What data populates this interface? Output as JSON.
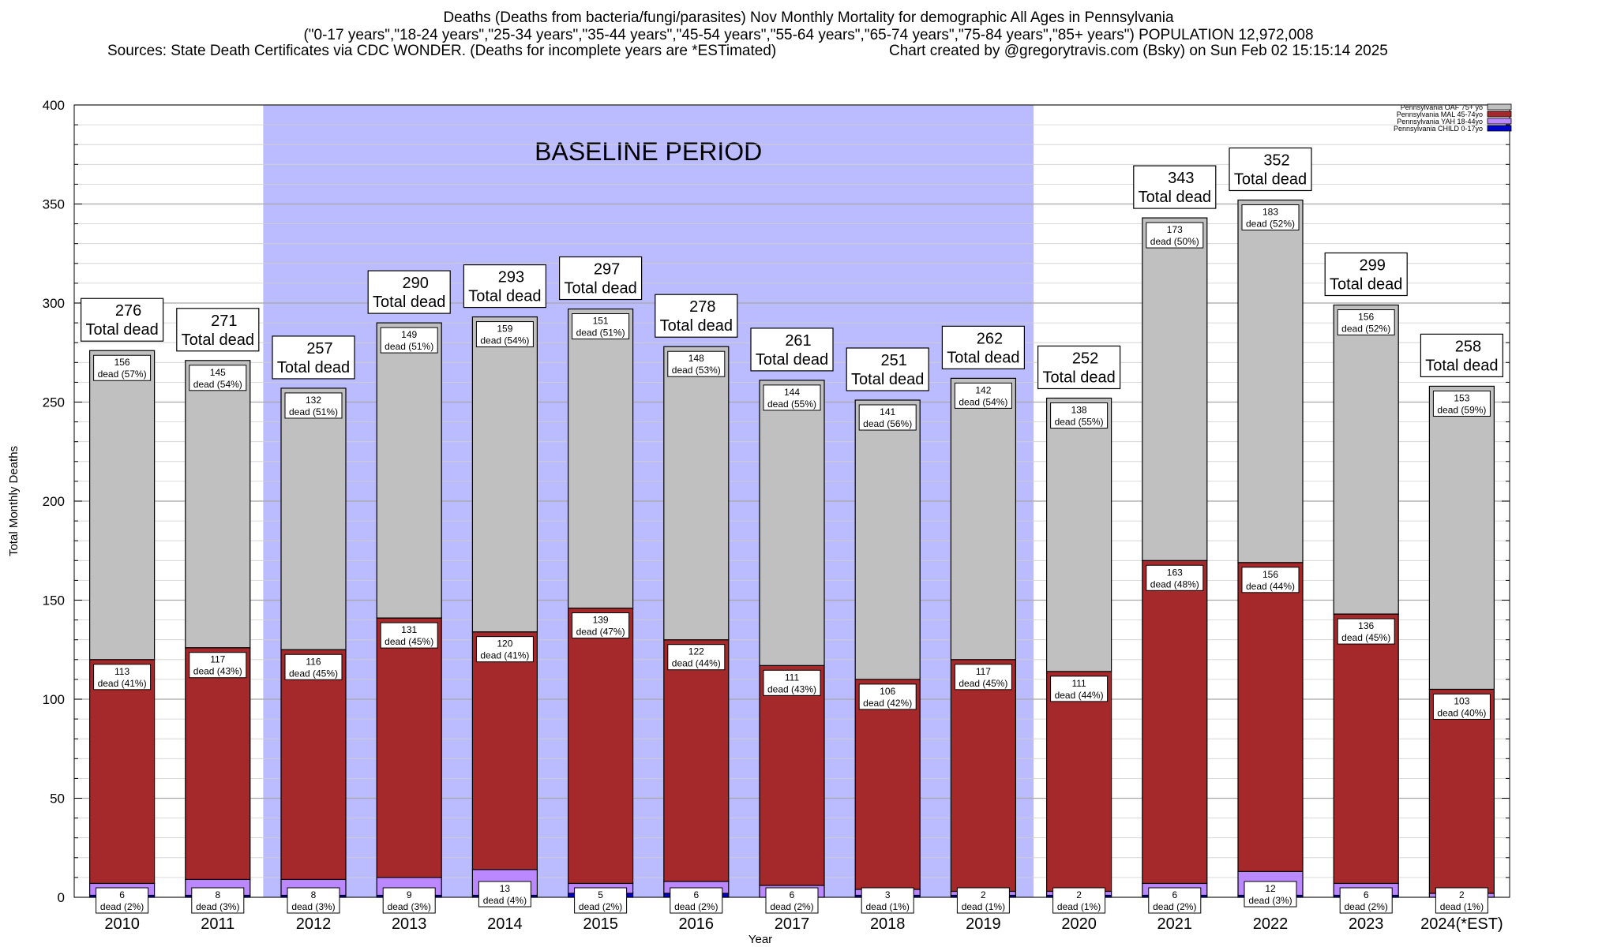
{
  "title_lines": [
    "Deaths (Deaths from bacteria/fungi/parasites) Nov Monthly Mortality for demographic All Ages in Pennsylvania",
    "(\"0-17 years\",\"18-24 years\",\"25-34 years\",\"35-44 years\",\"45-54 years\",\"55-64 years\",\"65-74 years\",\"75-84 years\",\"85+ years\") POPULATION 12,972,008",
    "Sources: State Death Certificates via CDC WONDER. (Deaths for incomplete years are *ESTimated)"
  ],
  "credit": "Chart created by @gregorytravis.com (Bsky) on Sun Feb 02 15:15:14 2025",
  "chart_data": {
    "type": "bar",
    "stacked": true,
    "title": "Deaths (Deaths from bacteria/fungi/parasites) Nov Monthly Mortality for demographic All Ages in Pennsylvania",
    "xlabel": "Year",
    "ylabel": "Total Monthly Deaths",
    "ylim": [
      0,
      400
    ],
    "yticks": [
      0,
      50,
      100,
      150,
      200,
      250,
      300,
      350,
      400
    ],
    "baseline_label": "BASELINE PERIOD",
    "baseline_range": [
      "2012",
      "2019"
    ],
    "total_suffix": "Total dead",
    "segment_word": "dead",
    "categories": [
      "2010",
      "2011",
      "2012",
      "2013",
      "2014",
      "2015",
      "2016",
      "2017",
      "2018",
      "2019",
      "2020",
      "2021",
      "2022",
      "2023",
      "2024(*EST)"
    ],
    "totals": [
      276,
      271,
      257,
      290,
      293,
      297,
      278,
      261,
      251,
      262,
      252,
      343,
      352,
      299,
      258
    ],
    "series": [
      {
        "name": "Pennsylvania CHILD 0-17yo",
        "color": "#0000cc",
        "values": [
          1,
          1,
          1,
          1,
          1,
          2,
          2,
          0,
          1,
          1,
          1,
          1,
          1,
          1,
          0
        ]
      },
      {
        "name": "Pennsylvania YAH 18-44yo",
        "color": "#bb88ff",
        "values": [
          6,
          8,
          8,
          9,
          13,
          5,
          6,
          6,
          3,
          2,
          2,
          6,
          12,
          6,
          2
        ],
        "labels": [
          "(2%)",
          "(3%)",
          "(3%)",
          "(3%)",
          "(4%)",
          "(2%)",
          "(2%)",
          "(2%)",
          "(1%)",
          "(1%)",
          "(1%)",
          "(2%)",
          "(3%)",
          "(2%)",
          "(1%)"
        ]
      },
      {
        "name": "Pennsylvania MAL 45-74yo",
        "color": "#a5282a",
        "values": [
          113,
          117,
          116,
          131,
          120,
          139,
          122,
          111,
          106,
          117,
          111,
          163,
          156,
          136,
          103
        ],
        "labels": [
          "(41%)",
          "(43%)",
          "(45%)",
          "(45%)",
          "(41%)",
          "(47%)",
          "(44%)",
          "(43%)",
          "(42%)",
          "(45%)",
          "(44%)",
          "(48%)",
          "(44%)",
          "(45%)",
          "(40%)"
        ]
      },
      {
        "name": "Pennsylvania OAF 75+ yo",
        "color": "#c0c0c0",
        "values": [
          156,
          145,
          132,
          149,
          159,
          151,
          148,
          144,
          141,
          142,
          138,
          173,
          183,
          156,
          153
        ],
        "labels": [
          "(57%)",
          "(54%)",
          "(51%)",
          "(51%)",
          "(54%)",
          "(51%)",
          "(53%)",
          "(55%)",
          "(56%)",
          "(54%)",
          "(55%)",
          "(50%)",
          "(52%)",
          "(52%)",
          "(59%)"
        ]
      }
    ],
    "legend": [
      {
        "name": "Pennsylvania OAF 75+ yo",
        "color": "#c0c0c0"
      },
      {
        "name": "Pennsylvania MAL 45-74yo",
        "color": "#a5282a"
      },
      {
        "name": "Pennsylvania YAH 18-44yo",
        "color": "#bb88ff"
      },
      {
        "name": "Pennsylvania CHILD 0-17yo",
        "color": "#0000cc"
      }
    ],
    "legend_position": "top-right"
  }
}
